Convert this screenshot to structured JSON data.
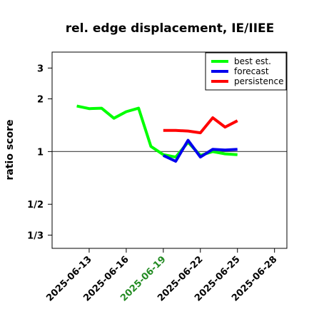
{
  "chart_data": {
    "type": "line",
    "title": "rel. edge displacement, IE/IIEE",
    "ylabel": "ratio score",
    "xlabel": "",
    "y_scale": "log",
    "ylim": [
      0.28,
      3.7
    ],
    "xlim": [
      "2025-06-10",
      "2025-06-29"
    ],
    "y_ticks": [
      {
        "value": 3,
        "label": "3"
      },
      {
        "value": 2,
        "label": "2"
      },
      {
        "value": 1,
        "label": "1"
      },
      {
        "value": 0.5,
        "label": "1/2"
      },
      {
        "value": 0.3333,
        "label": "1/3"
      }
    ],
    "x_ticks": [
      {
        "date": "2025-06-13",
        "label": "2025-06-13",
        "color": "#000000"
      },
      {
        "date": "2025-06-16",
        "label": "2025-06-16",
        "color": "#000000"
      },
      {
        "date": "2025-06-19",
        "label": "2025-06-19",
        "color": "#228B22"
      },
      {
        "date": "2025-06-22",
        "label": "2025-06-22",
        "color": "#000000"
      },
      {
        "date": "2025-06-25",
        "label": "2025-06-25",
        "color": "#000000"
      },
      {
        "date": "2025-06-28",
        "label": "2025-06-28",
        "color": "#000000"
      }
    ],
    "reference_line": {
      "y": 1,
      "color": "#555555"
    },
    "grid": false,
    "legend_position": "top-right",
    "series": [
      {
        "name": "best est.",
        "color": "#00ff00",
        "x": [
          "2025-06-12",
          "2025-06-13",
          "2025-06-14",
          "2025-06-15",
          "2025-06-16",
          "2025-06-17",
          "2025-06-18",
          "2025-06-19",
          "2025-06-20",
          "2025-06-21",
          "2025-06-22",
          "2025-06-23",
          "2025-06-24",
          "2025-06-25"
        ],
        "values": [
          1.82,
          1.76,
          1.77,
          1.55,
          1.69,
          1.77,
          1.07,
          0.96,
          0.93,
          1.13,
          0.95,
          1.0,
          0.97,
          0.96
        ]
      },
      {
        "name": "forecast",
        "color": "#0000ee",
        "x": [
          "2025-06-19",
          "2025-06-20",
          "2025-06-21",
          "2025-06-22",
          "2025-06-23",
          "2025-06-24",
          "2025-06-25"
        ],
        "values": [
          0.95,
          0.88,
          1.16,
          0.93,
          1.03,
          1.02,
          1.03
        ]
      },
      {
        "name": "persistence",
        "color": "#ff0000",
        "x": [
          "2025-06-19",
          "2025-06-20",
          "2025-06-21",
          "2025-06-22",
          "2025-06-23",
          "2025-06-24",
          "2025-06-25"
        ],
        "values": [
          1.32,
          1.32,
          1.31,
          1.28,
          1.56,
          1.38,
          1.5
        ]
      }
    ]
  }
}
